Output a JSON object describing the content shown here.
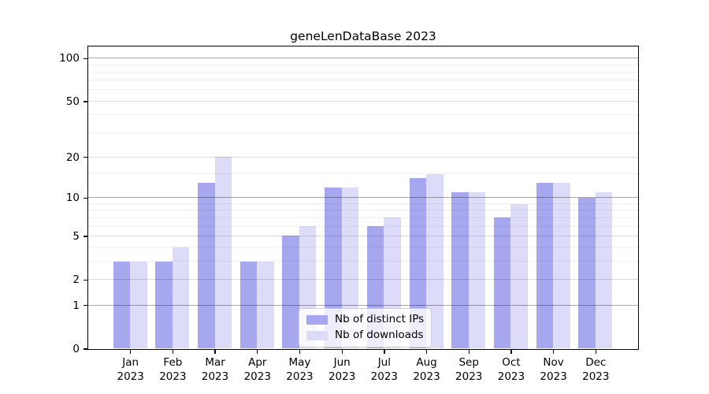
{
  "chart_data": {
    "type": "bar",
    "title": "geneLenDataBase 2023",
    "categories": [
      "Jan 2023",
      "Feb 2023",
      "Mar 2023",
      "Apr 2023",
      "May 2023",
      "Jun 2023",
      "Jul 2023",
      "Aug 2023",
      "Sep 2023",
      "Oct 2023",
      "Nov 2023",
      "Dec 2023"
    ],
    "series": [
      {
        "name": "Nb of distinct IPs",
        "color": "#a7a7f0",
        "values": [
          3,
          3,
          13,
          3,
          5,
          12,
          6,
          14,
          11,
          7,
          13,
          10
        ]
      },
      {
        "name": "Nb of downloads",
        "color": "#dcdcf8",
        "values": [
          3,
          4,
          20,
          3,
          6,
          12,
          7,
          15,
          11,
          9,
          13,
          11
        ]
      }
    ],
    "xlabel": "",
    "ylabel": "",
    "yscale": "log1p",
    "y_axis": {
      "ticks_labeled": [
        0,
        1,
        2,
        5,
        10,
        20,
        50,
        100
      ],
      "ticks_minor": [
        3,
        4,
        6,
        7,
        8,
        9,
        15,
        30,
        40,
        60,
        70,
        80,
        90
      ],
      "top_value": 115
    },
    "grid": true,
    "legend_position": "lower center"
  }
}
